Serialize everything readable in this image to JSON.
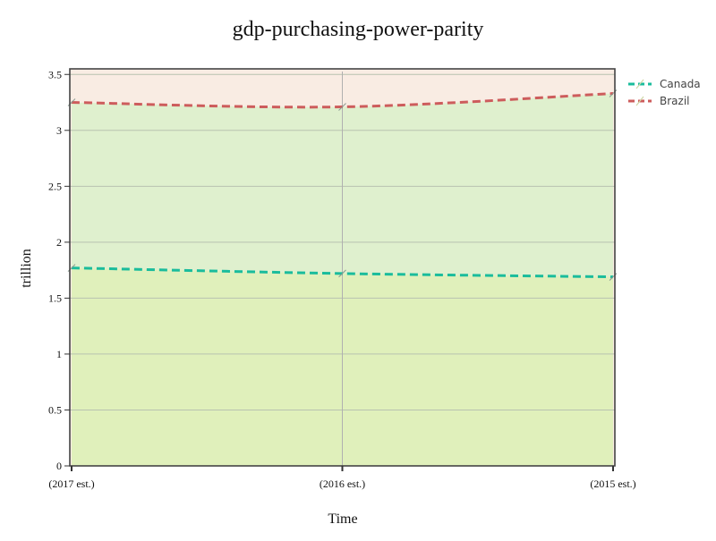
{
  "chart_data": {
    "type": "area",
    "title": "gdp-purchasing-power-parity",
    "xlabel": "Time",
    "ylabel": "trillion",
    "categories": [
      "(2017 est.)",
      "(2016 est.)",
      "(2015 est.)"
    ],
    "ylim": [
      0,
      3.55
    ],
    "yticks": [
      0,
      0.5,
      1,
      1.5,
      2,
      2.5,
      3,
      3.5
    ],
    "ytick_labels": [
      "0",
      "0.5",
      "1",
      "1.5",
      "2",
      "2.5",
      "3",
      "3.5"
    ],
    "grid": true,
    "legend_position": "top-right",
    "series": [
      {
        "name": "Canada",
        "values": [
          1.77,
          1.72,
          1.69
        ],
        "color": "#1abc9c",
        "fill": "#e0f0bb"
      },
      {
        "name": "Brazil",
        "values": [
          3.25,
          3.21,
          3.33
        ],
        "color": "#cd5c5c",
        "fill": "#dff0ce"
      }
    ],
    "plot_background": "#f9ece3"
  }
}
